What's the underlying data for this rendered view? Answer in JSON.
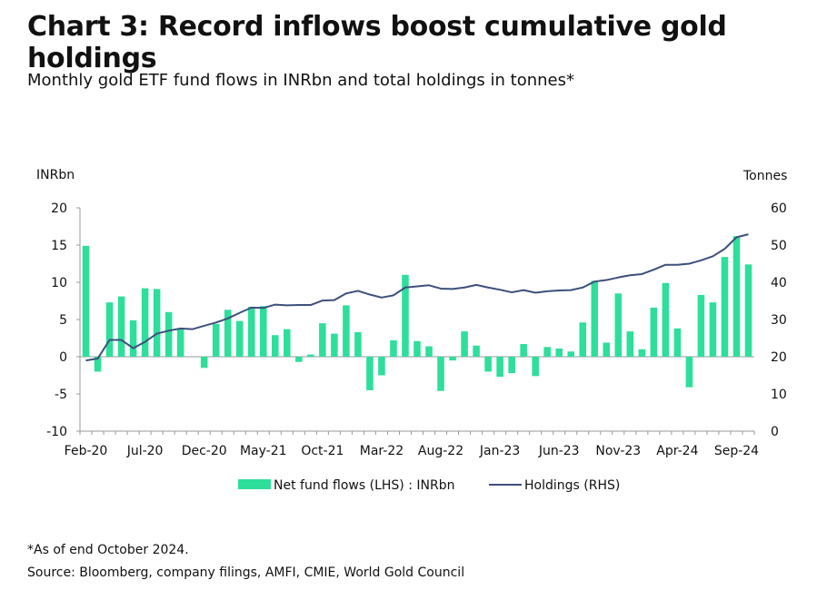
{
  "title": "Chart 3: Record inflows boost cumulative gold holdings",
  "subtitle": "Monthly gold ETF fund flows in INRbn and total holdings in tonnes*",
  "footnote": "*As of end October 2024.",
  "source": "Source: Bloomberg, company filings, AMFI, CMIE, World Gold Council",
  "colors": {
    "bars": "#2ddf9a",
    "line": "#3d4f7c",
    "axis": "#9a9a9a"
  },
  "chart_data": {
    "type": "bar+line",
    "left_axis_label": "INRbn",
    "right_axis_label": "Tonnes",
    "left_ylim": [
      -10,
      20
    ],
    "left_ticks": [
      "-10",
      "-5",
      "0",
      "5",
      "10",
      "15",
      "20"
    ],
    "right_ylim": [
      0,
      60
    ],
    "right_ticks": [
      "0",
      "10",
      "20",
      "30",
      "40",
      "50",
      "60"
    ],
    "x_tick_labels": [
      "Feb-20",
      "Jul-20",
      "Dec-20",
      "May-21",
      "Oct-21",
      "Mar-22",
      "Aug-22",
      "Jan-23",
      "Jun-23",
      "Nov-23",
      "Apr-24",
      "Sep-24"
    ],
    "x_tick_every": 5,
    "grid": false,
    "legend_position": "bottom",
    "series": [
      {
        "name": "Net fund flows (LHS) : INRbn",
        "type": "bar",
        "axis": "left",
        "values": [
          14.9,
          -2.0,
          7.3,
          8.1,
          4.9,
          9.2,
          9.1,
          6.0,
          3.8,
          0,
          -1.5,
          4.4,
          6.3,
          4.8,
          6.7,
          6.8,
          2.9,
          3.7,
          -0.7,
          0.3,
          4.5,
          3.1,
          6.9,
          3.3,
          -4.5,
          -2.5,
          2.2,
          11.0,
          2.1,
          1.4,
          -4.6,
          -0.5,
          3.4,
          1.5,
          -2.0,
          -2.7,
          -2.2,
          1.7,
          -2.6,
          1.3,
          1.1,
          0.7,
          4.6,
          10.2,
          1.9,
          8.5,
          3.4,
          1.0,
          6.6,
          9.9,
          3.8,
          -4.1,
          8.3,
          7.3,
          13.4,
          16.2,
          12.4
        ]
      },
      {
        "name": "Holdings (RHS)",
        "type": "line",
        "axis": "right",
        "values": [
          19.0,
          19.5,
          24.5,
          24.5,
          22.3,
          24.0,
          26.2,
          27.0,
          27.6,
          27.4,
          28.3,
          29.2,
          30.3,
          31.8,
          33.2,
          33.1,
          34.0,
          33.8,
          33.9,
          33.9,
          35.1,
          35.2,
          37.0,
          37.7,
          36.7,
          35.9,
          36.5,
          38.6,
          38.9,
          39.2,
          38.3,
          38.2,
          38.6,
          39.3,
          38.6,
          38.0,
          37.3,
          37.9,
          37.2,
          37.6,
          37.8,
          37.9,
          38.6,
          40.2,
          40.6,
          41.3,
          41.9,
          42.2,
          43.4,
          44.7,
          44.7,
          45.0,
          45.9,
          47.0,
          49.0,
          52.1,
          52.9
        ]
      }
    ]
  }
}
